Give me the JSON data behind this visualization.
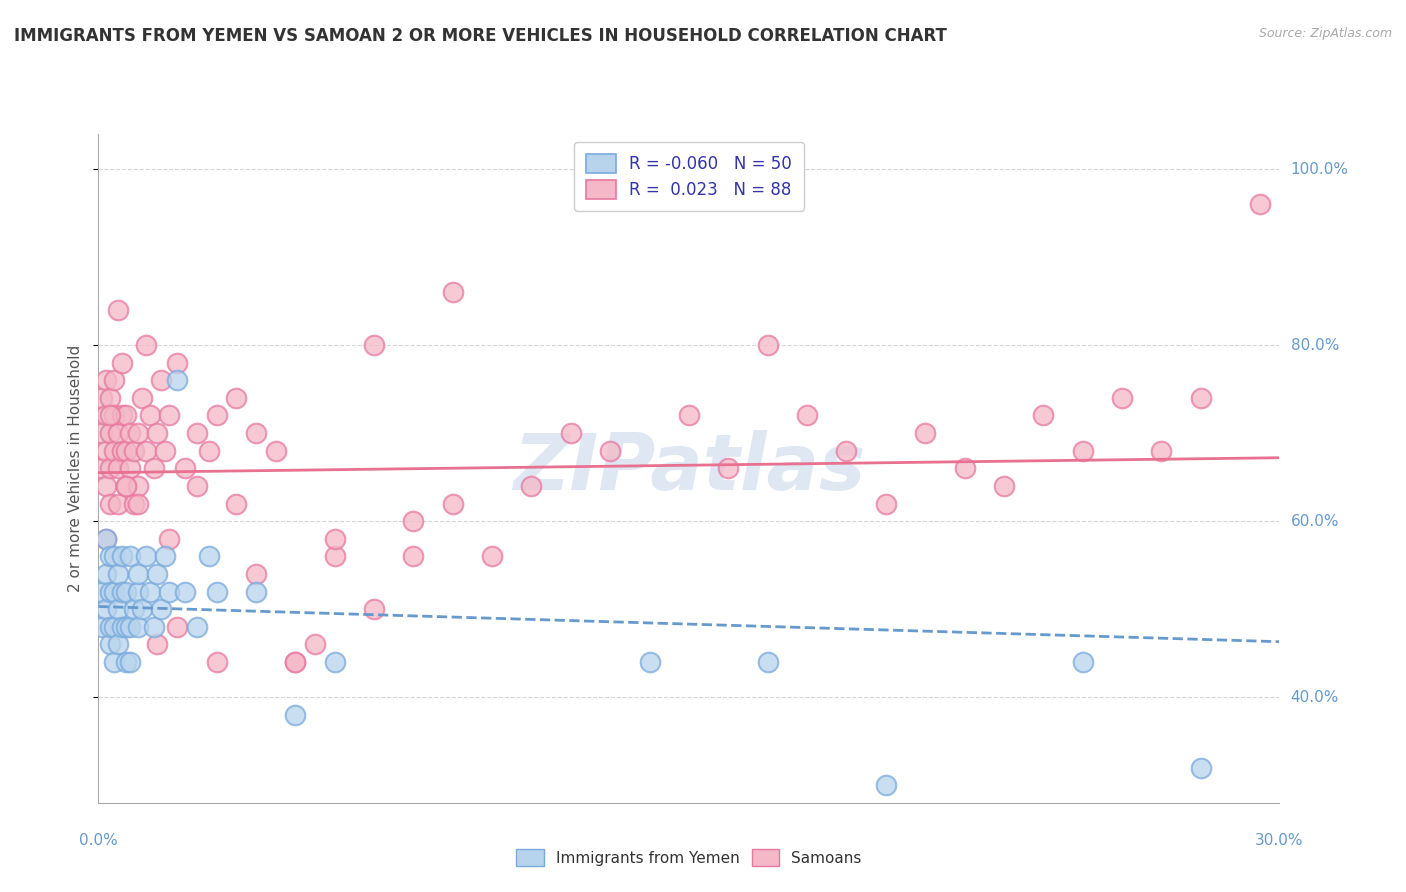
{
  "title": "IMMIGRANTS FROM YEMEN VS SAMOAN 2 OR MORE VEHICLES IN HOUSEHOLD CORRELATION CHART",
  "source": "Source: ZipAtlas.com",
  "legend_entry1": "R = -0.060   N = 50",
  "legend_entry2": "R =  0.023   N = 88",
  "legend_label1": "Immigrants from Yemen",
  "legend_label2": "Samoans",
  "r1": -0.06,
  "n1": 50,
  "r2": 0.023,
  "n2": 88,
  "color1": "#b8d4ec",
  "color2": "#f4b8c8",
  "edge1_color": "#7aaadd",
  "edge2_color": "#e878a0",
  "line1_color": "#6699cc",
  "line2_color": "#e87090",
  "background_color": "#ffffff",
  "grid_color": "#cccccc",
  "watermark": "ZIPatlas",
  "watermark_color": "#c8d8ea",
  "x_min": 0.0,
  "x_max": 0.3,
  "y_min": 0.28,
  "y_max": 1.04,
  "y_ticks": [
    0.4,
    0.6,
    0.8,
    1.0
  ],
  "y_tick_labels": [
    "40.0%",
    "60.0%",
    "80.0%",
    "100.0%"
  ],
  "x_ticks": [
    0.0,
    0.3
  ],
  "x_tick_labels": [
    "0.0%",
    "30.0%"
  ],
  "ylabel_label": "2 or more Vehicles in Household",
  "tick_color": "#6699cc",
  "scatter1_x": [
    0.001,
    0.001,
    0.002,
    0.002,
    0.002,
    0.003,
    0.003,
    0.003,
    0.003,
    0.004,
    0.004,
    0.004,
    0.004,
    0.005,
    0.005,
    0.005,
    0.006,
    0.006,
    0.006,
    0.007,
    0.007,
    0.007,
    0.008,
    0.008,
    0.008,
    0.009,
    0.01,
    0.01,
    0.01,
    0.011,
    0.012,
    0.013,
    0.014,
    0.015,
    0.016,
    0.017,
    0.018,
    0.02,
    0.022,
    0.025,
    0.028,
    0.03,
    0.04,
    0.05,
    0.06,
    0.14,
    0.17,
    0.2,
    0.25,
    0.28
  ],
  "scatter1_y": [
    0.48,
    0.52,
    0.5,
    0.54,
    0.58,
    0.46,
    0.48,
    0.52,
    0.56,
    0.44,
    0.48,
    0.52,
    0.56,
    0.46,
    0.5,
    0.54,
    0.48,
    0.52,
    0.56,
    0.44,
    0.48,
    0.52,
    0.44,
    0.48,
    0.56,
    0.5,
    0.52,
    0.48,
    0.54,
    0.5,
    0.56,
    0.52,
    0.48,
    0.54,
    0.5,
    0.56,
    0.52,
    0.76,
    0.52,
    0.48,
    0.56,
    0.52,
    0.52,
    0.38,
    0.44,
    0.44,
    0.44,
    0.3,
    0.44,
    0.32
  ],
  "scatter2_x": [
    0.001,
    0.001,
    0.001,
    0.002,
    0.002,
    0.002,
    0.002,
    0.003,
    0.003,
    0.003,
    0.003,
    0.004,
    0.004,
    0.004,
    0.005,
    0.005,
    0.005,
    0.006,
    0.006,
    0.006,
    0.007,
    0.007,
    0.007,
    0.008,
    0.008,
    0.009,
    0.009,
    0.01,
    0.01,
    0.011,
    0.012,
    0.013,
    0.014,
    0.015,
    0.016,
    0.017,
    0.018,
    0.02,
    0.022,
    0.025,
    0.028,
    0.03,
    0.035,
    0.04,
    0.045,
    0.05,
    0.055,
    0.06,
    0.07,
    0.08,
    0.09,
    0.1,
    0.11,
    0.12,
    0.13,
    0.15,
    0.16,
    0.17,
    0.18,
    0.19,
    0.2,
    0.21,
    0.22,
    0.23,
    0.24,
    0.25,
    0.26,
    0.27,
    0.28,
    0.295,
    0.002,
    0.003,
    0.005,
    0.007,
    0.01,
    0.012,
    0.015,
    0.018,
    0.02,
    0.025,
    0.03,
    0.035,
    0.04,
    0.05,
    0.06,
    0.07,
    0.08,
    0.09
  ],
  "scatter2_y": [
    0.66,
    0.7,
    0.74,
    0.64,
    0.68,
    0.72,
    0.76,
    0.62,
    0.66,
    0.7,
    0.74,
    0.68,
    0.72,
    0.76,
    0.62,
    0.66,
    0.7,
    0.68,
    0.72,
    0.78,
    0.64,
    0.68,
    0.72,
    0.66,
    0.7,
    0.62,
    0.68,
    0.64,
    0.7,
    0.74,
    0.68,
    0.72,
    0.66,
    0.7,
    0.76,
    0.68,
    0.72,
    0.78,
    0.66,
    0.64,
    0.68,
    0.72,
    0.74,
    0.7,
    0.68,
    0.44,
    0.46,
    0.56,
    0.5,
    0.6,
    0.62,
    0.56,
    0.64,
    0.7,
    0.68,
    0.72,
    0.66,
    0.8,
    0.72,
    0.68,
    0.62,
    0.7,
    0.66,
    0.64,
    0.72,
    0.68,
    0.74,
    0.68,
    0.74,
    0.96,
    0.58,
    0.72,
    0.84,
    0.64,
    0.62,
    0.8,
    0.46,
    0.58,
    0.48,
    0.7,
    0.44,
    0.62,
    0.54,
    0.44,
    0.58,
    0.8,
    0.56,
    0.86
  ]
}
